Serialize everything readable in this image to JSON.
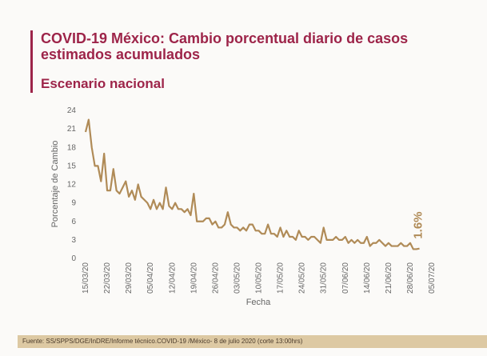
{
  "header": {
    "title": "COVID-19 México: Cambio porcentual diario de casos estimados acumulados",
    "subtitle": "Escenario nacional"
  },
  "chart_data": {
    "type": "line",
    "x_label": "Fecha",
    "y_label": "Porcentaje de Cambio",
    "annotation": "1.6%",
    "categories": [
      "15/03/20",
      null,
      null,
      null,
      null,
      null,
      null,
      "22/03/20",
      null,
      null,
      null,
      null,
      null,
      null,
      "29/03/20",
      null,
      null,
      null,
      null,
      null,
      null,
      "05/04/20",
      null,
      null,
      null,
      null,
      null,
      null,
      "12/04/20",
      null,
      null,
      null,
      null,
      null,
      null,
      "19/04/20",
      null,
      null,
      null,
      null,
      null,
      null,
      "26/04/20",
      null,
      null,
      null,
      null,
      null,
      null,
      "03/05/20",
      null,
      null,
      null,
      null,
      null,
      null,
      "10/05/20",
      null,
      null,
      null,
      null,
      null,
      null,
      "17/05/20",
      null,
      null,
      null,
      null,
      null,
      null,
      "24/05/20",
      null,
      null,
      null,
      null,
      null,
      null,
      "31/05/20",
      null,
      null,
      null,
      null,
      null,
      null,
      "07/06/20",
      null,
      null,
      null,
      null,
      null,
      null,
      "14/06/20",
      null,
      null,
      null,
      null,
      null,
      null,
      "21/06/20",
      null,
      null,
      null,
      null,
      null,
      null,
      "28/06/20",
      null,
      null,
      null,
      null,
      null,
      null,
      "05/07/20"
    ],
    "values": [
      20.5,
      22.5,
      18,
      15,
      15,
      12.5,
      17,
      11,
      11,
      14.5,
      11,
      10.5,
      11.5,
      12.5,
      10,
      11,
      9.5,
      12,
      10,
      9.5,
      9,
      8,
      9.5,
      8,
      9,
      8,
      11.5,
      8.5,
      8,
      9,
      8,
      8,
      7.5,
      8,
      7,
      10.5,
      6,
      6,
      6,
      6.5,
      6.5,
      5.5,
      6,
      5,
      5,
      5.5,
      7.5,
      5.5,
      5,
      5,
      4.5,
      5,
      4.5,
      5.5,
      5.5,
      4.5,
      4.5,
      4,
      4,
      5.5,
      4,
      4,
      3.5,
      5,
      3.5,
      4.5,
      3.5,
      3.5,
      3,
      4.5,
      3.5,
      3.5,
      3,
      3.5,
      3.5,
      3,
      2.5,
      5,
      3,
      3,
      3,
      3.5,
      3,
      3,
      3.5,
      2.5,
      3,
      2.5,
      3,
      2.5,
      2.5,
      3.5,
      2,
      2.5,
      2.5,
      3,
      2.5,
      2,
      2.5,
      2,
      2,
      2,
      2.5,
      2,
      2,
      2.5,
      1.5,
      1.5,
      1.6,
      null,
      null,
      null,
      null
    ],
    "color": "#b08b57",
    "ylim": [
      0,
      24
    ],
    "yticks": [
      0,
      3,
      6,
      9,
      12,
      15,
      18,
      21,
      24
    ],
    "grid": false
  },
  "footer": {
    "source": "Fuente: SS/SPPS/DGE/InDRE/Informe técnico.COVID-19 /México- 8 de julio 2020 (corte 13:00hrs)"
  }
}
